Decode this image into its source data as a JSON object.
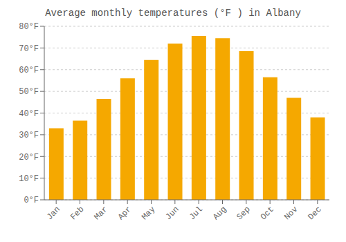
{
  "chart_data": {
    "type": "bar",
    "title": "Average monthly temperatures (°F ) in Albany",
    "categories": [
      "Jan",
      "Feb",
      "Mar",
      "Apr",
      "May",
      "Jun",
      "Jul",
      "Aug",
      "Sep",
      "Oct",
      "Nov",
      "Dec"
    ],
    "values": [
      33,
      36.5,
      46.5,
      56,
      64.5,
      72,
      75.5,
      74.5,
      68.5,
      56.5,
      47,
      38
    ],
    "color": "#F5A800",
    "ylim": [
      0,
      80
    ],
    "yticks": [
      {
        "value": 0,
        "label": "0°F"
      },
      {
        "value": 10,
        "label": "10°F"
      },
      {
        "value": 20,
        "label": "20°F"
      },
      {
        "value": 30,
        "label": "30°F"
      },
      {
        "value": 40,
        "label": "40°F"
      },
      {
        "value": 50,
        "label": "50°F"
      },
      {
        "value": 60,
        "label": "60°F"
      },
      {
        "value": 70,
        "label": "70°F"
      },
      {
        "value": 80,
        "label": "80°F"
      }
    ],
    "grid": true
  }
}
